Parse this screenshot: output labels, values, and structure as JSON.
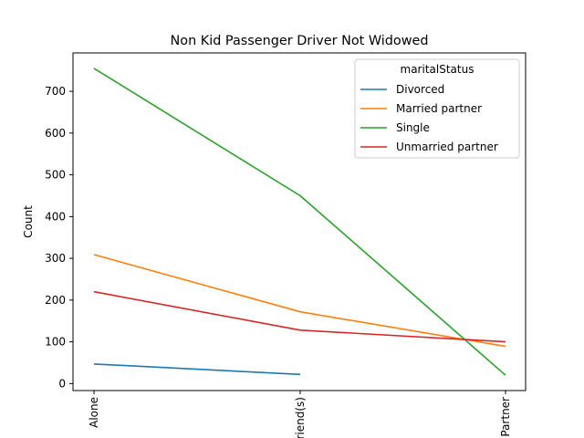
{
  "chart_data": {
    "type": "line",
    "title": "Non Kid Passenger Driver Not Widowed",
    "xlabel": "",
    "ylabel": "Count",
    "categories": [
      "Alone",
      "Friend(s)",
      "Partner"
    ],
    "ylim": [
      -16.7,
      792
    ],
    "yticks": [
      0,
      100,
      200,
      300,
      400,
      500,
      600,
      700
    ],
    "grid": false,
    "legend": {
      "title": "maritalStatus",
      "placement": "top-right"
    },
    "series": [
      {
        "name": "Divorced",
        "color": "#1f77b4",
        "values": [
          47,
          22,
          null
        ]
      },
      {
        "name": "Married partner",
        "color": "#ff7f0e",
        "values": [
          309,
          172,
          89
        ]
      },
      {
        "name": "Single",
        "color": "#2ca02c",
        "values": [
          755,
          450,
          20
        ]
      },
      {
        "name": "Unmarried partner",
        "color": "#d62728",
        "values": [
          220,
          128,
          100
        ]
      }
    ]
  }
}
